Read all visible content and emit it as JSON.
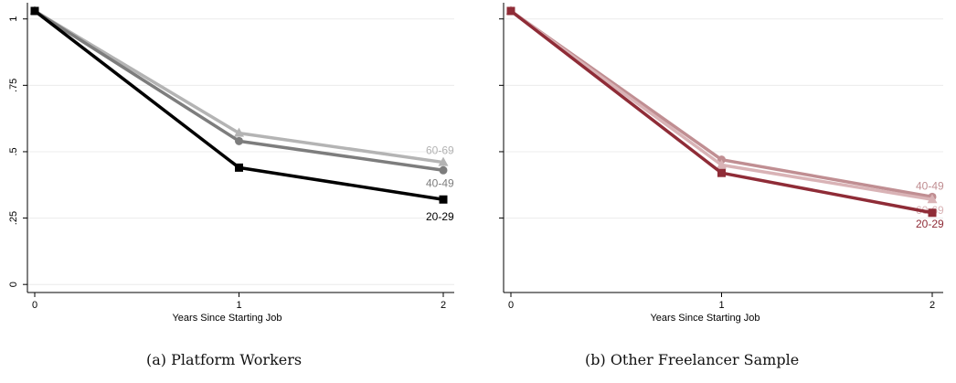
{
  "chart_data": [
    {
      "type": "line",
      "caption": "(a) Platform Workers",
      "xlabel": "Years Since Starting Job",
      "ylabel": "",
      "x": [
        0,
        1,
        2
      ],
      "xticks": [
        "0",
        "1",
        "2"
      ],
      "ylim": [
        0,
        1.03
      ],
      "yticks": [
        0,
        0.25,
        0.5,
        0.75,
        1
      ],
      "ytick_labels": [
        "0",
        ".25",
        ".5",
        ".75",
        "1"
      ],
      "grid": true,
      "series": [
        {
          "name": "60-69",
          "values": [
            1.03,
            0.57,
            0.46
          ],
          "color": "#b4b4b4",
          "marker": "triangle"
        },
        {
          "name": "40-49",
          "values": [
            1.03,
            0.54,
            0.43
          ],
          "color": "#7d7d7d",
          "marker": "circle"
        },
        {
          "name": "20-29",
          "values": [
            1.03,
            0.44,
            0.32
          ],
          "color": "#000000",
          "marker": "square"
        }
      ]
    },
    {
      "type": "line",
      "caption": "(b) Other Freelancer Sample",
      "xlabel": "Years Since Starting Job",
      "ylabel": "",
      "x": [
        0,
        1,
        2
      ],
      "xticks": [
        "0",
        "1",
        "2"
      ],
      "ylim": [
        0,
        1.03
      ],
      "yticks": [
        0.25,
        0.5,
        0.75,
        1
      ],
      "ytick_labels": [
        "",
        "",
        "",
        ""
      ],
      "grid": true,
      "series": [
        {
          "name": "40-49",
          "values": [
            1.03,
            0.47,
            0.33
          ],
          "color": "#c08e92",
          "marker": "circle"
        },
        {
          "name": "60-69",
          "values": [
            1.03,
            0.45,
            0.32
          ],
          "color": "#d9b3b6",
          "marker": "triangle"
        },
        {
          "name": "20-29",
          "values": [
            1.03,
            0.42,
            0.27
          ],
          "color": "#8f2c37",
          "marker": "square"
        }
      ]
    }
  ]
}
